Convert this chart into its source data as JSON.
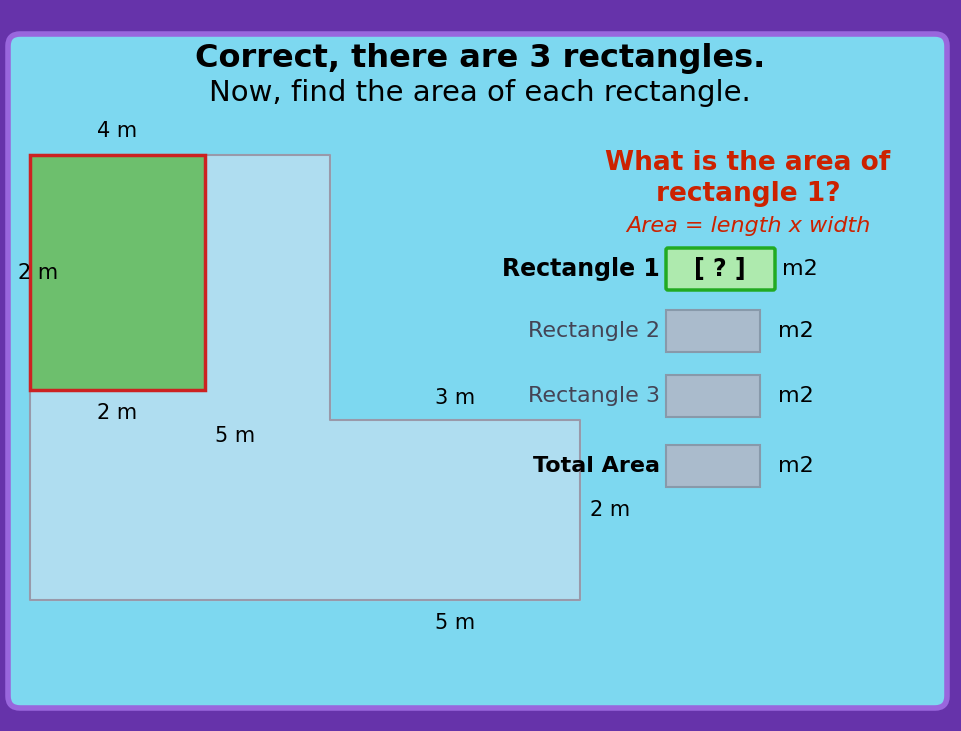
{
  "title_bold": "Correct, there are 3 rectangles.",
  "title_regular": "Now, find the area of each rectangle.",
  "bg_outer": "#6633AA",
  "bg_inner": "#7DD8F0",
  "card_border": "#9966DD",
  "green_rect_color": "#6DBF6D",
  "green_rect_border": "#CC2222",
  "shape_fill": "#B8DFF0",
  "shape_stroke": "#9999AA",
  "question_color": "#CC2200",
  "answer_box1_fill": "#AEEAAE",
  "answer_box1_border": "#22AA22",
  "answer_box2_fill": "#AABBCC",
  "answer_box2_border": "#8899AA",
  "total_box_fill": "#AABBCC",
  "total_box_border": "#8899AA",
  "label_4m": "4 m",
  "label_2m_left": "2 m",
  "label_2m_bottom": "2 m",
  "label_5m_left": "5 m",
  "label_3m": "3 m",
  "label_2m_right": "2 m",
  "label_5m_bottom": "5 m",
  "question_line1": "What is the area of",
  "question_line2": "rectangle 1?",
  "formula": "Area = length x width",
  "rect1_label": "Rectangle 1",
  "rect2_label": "Rectangle 2",
  "rect3_label": "Rectangle 3",
  "total_label": "Total Area",
  "answer_text": "[ ? ]",
  "unit": "m2"
}
